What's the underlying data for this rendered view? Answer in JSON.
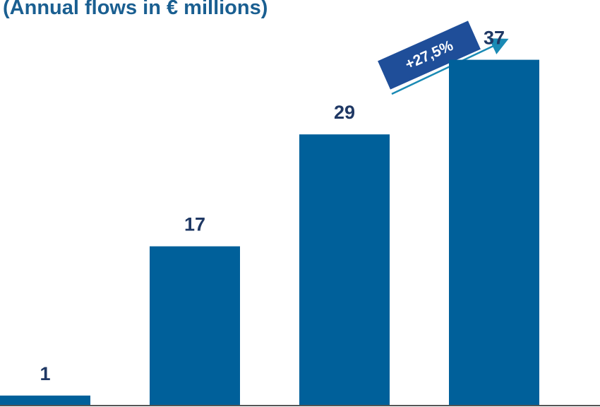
{
  "chart_data": {
    "type": "bar",
    "title": "(Annual flows in € millions)",
    "values": [
      1,
      17,
      29,
      37
    ],
    "color": "#00609a",
    "ylim": [
      0,
      40
    ],
    "annotation": "+27,5%"
  }
}
